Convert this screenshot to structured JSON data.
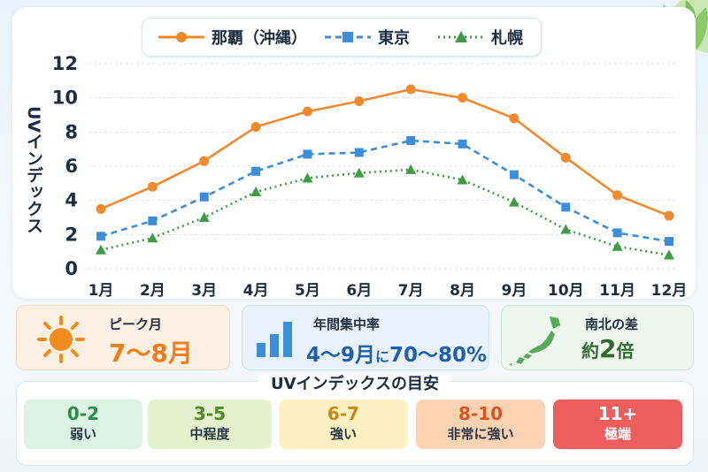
{
  "chart_data": {
    "type": "line",
    "categories": [
      "1月",
      "2月",
      "3月",
      "4月",
      "5月",
      "6月",
      "7月",
      "8月",
      "9月",
      "10月",
      "11月",
      "12月"
    ],
    "ylabel": "UVインデックス",
    "ylim": [
      0,
      12
    ],
    "yticks": [
      "0",
      "2",
      "4",
      "6",
      "8",
      "10",
      "12"
    ],
    "grid": true,
    "legend_position": "top",
    "series": [
      {
        "name": "那覇（沖縄）",
        "color": "#f08a2c",
        "marker": "circle",
        "dash": "solid",
        "values": [
          3.5,
          4.8,
          6.3,
          8.3,
          9.2,
          9.8,
          10.5,
          10.0,
          8.8,
          6.5,
          4.3,
          3.1
        ]
      },
      {
        "name": "東京",
        "color": "#3d8ed8",
        "marker": "square",
        "dash": "dashed",
        "values": [
          1.9,
          2.8,
          4.2,
          5.7,
          6.7,
          6.8,
          7.5,
          7.3,
          5.5,
          3.6,
          2.1,
          1.6
        ]
      },
      {
        "name": "札幌",
        "color": "#3f9b45",
        "marker": "triangle",
        "dash": "dotted",
        "values": [
          1.1,
          1.8,
          3.0,
          4.5,
          5.3,
          5.6,
          5.8,
          5.2,
          3.9,
          2.3,
          1.3,
          0.8
        ]
      }
    ]
  },
  "cards": {
    "peak": {
      "title": "ピーク月",
      "value": "7〜8月",
      "icon": "sun-icon",
      "color": "#ee7d1a"
    },
    "concentration": {
      "title": "年間集中率",
      "value_main": "4〜9月",
      "value_mid": "に",
      "value_pct": "70〜80%",
      "icon": "bar-chart-icon",
      "color": "#1e5fae"
    },
    "north_south": {
      "title": "南北の差",
      "value_pre": "約",
      "value_num": "2",
      "value_post": "倍",
      "icon": "japan-map-icon",
      "color": "#2f6b30"
    }
  },
  "guide": {
    "title": "UVインデックスの目安",
    "levels": [
      {
        "range": "0-2",
        "label": "弱い",
        "bg": "#dcf3e3",
        "fg": "#2e8b4a"
      },
      {
        "range": "3-5",
        "label": "中程度",
        "bg": "#e4f1cf",
        "fg": "#4e8a21"
      },
      {
        "range": "6-7",
        "label": "強い",
        "bg": "#fdf0c2",
        "fg": "#c88a10"
      },
      {
        "range": "8-10",
        "label": "非常に強い",
        "bg": "#fbd3b2",
        "fg": "#d8561c"
      },
      {
        "range": "11+",
        "label": "極端",
        "bg": "#ef5e5e",
        "fg": "#ffffff"
      }
    ]
  }
}
